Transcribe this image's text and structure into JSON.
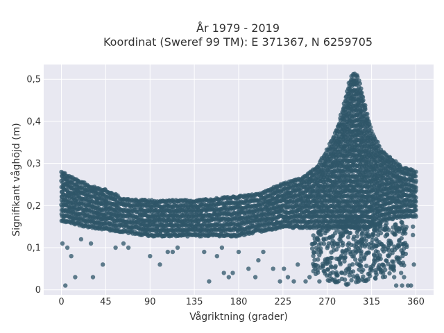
{
  "chart_data": {
    "type": "scatter",
    "title_lines": [
      "År 1979 - 2019",
      "Koordinat (Sweref 99 TM): E 371367, N 6259705"
    ],
    "xlabel": "Vågriktning (grader)",
    "ylabel": "Signifikant våghöjd (m)",
    "xlim": [
      -18,
      378
    ],
    "ylim": [
      -0.012,
      0.535
    ],
    "x_ticks": [
      0,
      45,
      90,
      135,
      180,
      225,
      270,
      315,
      360
    ],
    "y_ticks": [
      0,
      0.1,
      0.2,
      0.3,
      0.4,
      0.5
    ],
    "y_tick_labels": [
      "0",
      "0,1",
      "0,2",
      "0,3",
      "0,4",
      "0,5"
    ],
    "grid": true,
    "marker_color": "#2f5568",
    "background_color": "#e8e8f1",
    "main_band_envelope": [
      {
        "x": 0,
        "lower": 0.165,
        "upper": 0.28
      },
      {
        "x": 10,
        "lower": 0.16,
        "upper": 0.265
      },
      {
        "x": 20,
        "lower": 0.155,
        "upper": 0.255
      },
      {
        "x": 30,
        "lower": 0.15,
        "upper": 0.245
      },
      {
        "x": 45,
        "lower": 0.145,
        "upper": 0.235
      },
      {
        "x": 55,
        "lower": 0.14,
        "upper": 0.225
      },
      {
        "x": 60,
        "lower": 0.14,
        "upper": 0.215
      },
      {
        "x": 90,
        "lower": 0.13,
        "upper": 0.21
      },
      {
        "x": 135,
        "lower": 0.13,
        "upper": 0.21
      },
      {
        "x": 180,
        "lower": 0.13,
        "upper": 0.22
      },
      {
        "x": 200,
        "lower": 0.14,
        "upper": 0.225
      },
      {
        "x": 225,
        "lower": 0.15,
        "upper": 0.25
      },
      {
        "x": 245,
        "lower": 0.15,
        "upper": 0.265
      },
      {
        "x": 260,
        "lower": 0.15,
        "upper": 0.29
      },
      {
        "x": 270,
        "lower": 0.15,
        "upper": 0.33
      },
      {
        "x": 280,
        "lower": 0.15,
        "upper": 0.38
      },
      {
        "x": 286,
        "lower": 0.15,
        "upper": 0.43
      },
      {
        "x": 292,
        "lower": 0.15,
        "upper": 0.49
      },
      {
        "x": 296,
        "lower": 0.15,
        "upper": 0.51
      },
      {
        "x": 300,
        "lower": 0.15,
        "upper": 0.51
      },
      {
        "x": 304,
        "lower": 0.15,
        "upper": 0.48
      },
      {
        "x": 310,
        "lower": 0.15,
        "upper": 0.42
      },
      {
        "x": 315,
        "lower": 0.15,
        "upper": 0.375
      },
      {
        "x": 325,
        "lower": 0.165,
        "upper": 0.33
      },
      {
        "x": 335,
        "lower": 0.17,
        "upper": 0.31
      },
      {
        "x": 345,
        "lower": 0.175,
        "upper": 0.29
      },
      {
        "x": 360,
        "lower": 0.175,
        "upper": 0.28
      }
    ],
    "low_cloud_envelope": [
      {
        "x": 255,
        "lower": 0.04,
        "upper": 0.13
      },
      {
        "x": 270,
        "lower": 0.02,
        "upper": 0.15
      },
      {
        "x": 290,
        "lower": 0.01,
        "upper": 0.17
      },
      {
        "x": 305,
        "lower": 0.02,
        "upper": 0.17
      },
      {
        "x": 320,
        "lower": 0.02,
        "upper": 0.16
      },
      {
        "x": 335,
        "lower": 0.04,
        "upper": 0.16
      },
      {
        "x": 350,
        "lower": 0.06,
        "upper": 0.17
      }
    ],
    "outlier_points": [
      {
        "x": 4,
        "y": 0.01
      },
      {
        "x": 1,
        "y": 0.11
      },
      {
        "x": 6,
        "y": 0.1
      },
      {
        "x": 10,
        "y": 0.08
      },
      {
        "x": 14,
        "y": 0.03
      },
      {
        "x": 32,
        "y": 0.03
      },
      {
        "x": 42,
        "y": 0.06
      },
      {
        "x": 20,
        "y": 0.12
      },
      {
        "x": 30,
        "y": 0.11
      },
      {
        "x": 55,
        "y": 0.1
      },
      {
        "x": 63,
        "y": 0.11
      },
      {
        "x": 68,
        "y": 0.1
      },
      {
        "x": 90,
        "y": 0.08
      },
      {
        "x": 100,
        "y": 0.06
      },
      {
        "x": 108,
        "y": 0.09
      },
      {
        "x": 113,
        "y": 0.09
      },
      {
        "x": 118,
        "y": 0.1
      },
      {
        "x": 145,
        "y": 0.09
      },
      {
        "x": 150,
        "y": 0.02
      },
      {
        "x": 158,
        "y": 0.08
      },
      {
        "x": 163,
        "y": 0.1
      },
      {
        "x": 165,
        "y": 0.04
      },
      {
        "x": 170,
        "y": 0.03
      },
      {
        "x": 174,
        "y": 0.04
      },
      {
        "x": 180,
        "y": 0.09
      },
      {
        "x": 190,
        "y": 0.05
      },
      {
        "x": 197,
        "y": 0.03
      },
      {
        "x": 200,
        "y": 0.07
      },
      {
        "x": 205,
        "y": 0.09
      },
      {
        "x": 215,
        "y": 0.05
      },
      {
        "x": 222,
        "y": 0.02
      },
      {
        "x": 226,
        "y": 0.05
      },
      {
        "x": 230,
        "y": 0.03
      },
      {
        "x": 236,
        "y": 0.02
      },
      {
        "x": 240,
        "y": 0.06
      },
      {
        "x": 248,
        "y": 0.02
      },
      {
        "x": 252,
        "y": 0.03
      },
      {
        "x": 262,
        "y": 0.02
      },
      {
        "x": 346,
        "y": 0.01
      },
      {
        "x": 352,
        "y": 0.01
      },
      {
        "x": 355,
        "y": 0.01
      },
      {
        "x": 358,
        "y": 0.06
      },
      {
        "x": 357,
        "y": 0.13
      },
      {
        "x": 357,
        "y": 0.15
      },
      {
        "x": 340,
        "y": 0.01
      },
      {
        "x": 338,
        "y": 0.03
      },
      {
        "x": 345,
        "y": 0.04
      },
      {
        "x": 348,
        "y": 0.03
      }
    ]
  }
}
